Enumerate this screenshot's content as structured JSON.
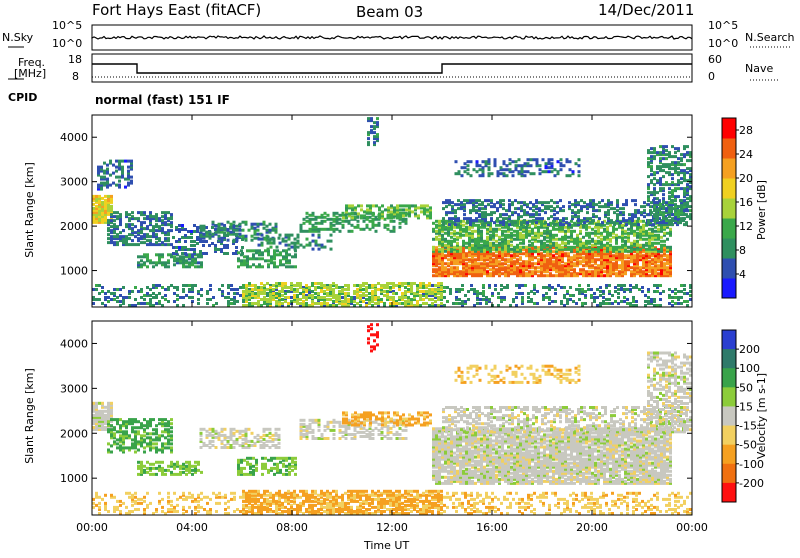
{
  "header": {
    "radar": "Fort Hays East (fitACF)",
    "beam": "Beam 03",
    "date": "14/Dec/2011"
  },
  "noise_panel": {
    "left_label": "N.Sky",
    "right_label": "N.Search",
    "left_ticks": [
      "10^5",
      "10^0"
    ],
    "right_ticks": [
      "10^5",
      "10^0"
    ]
  },
  "freq_panel": {
    "left_label_1": "Freq.",
    "left_label_2": "[MHz]",
    "right_label": "Nave",
    "left_ticks": [
      "18",
      "8"
    ],
    "right_ticks": [
      "60",
      "0"
    ]
  },
  "cpid": {
    "label": "CPID",
    "mode": "normal (fast) 151 IF"
  },
  "colors": {
    "power_scale": [
      "#1a1aff",
      "#2f4fb0",
      "#2f8f5f",
      "#3aa84a",
      "#a8d23a",
      "#f0d020",
      "#f5a020",
      "#f06010",
      "#ff0000"
    ],
    "velocity_scale": [
      "#2a3fd0",
      "#2f7a6a",
      "#39a34a",
      "#8ccc3a",
      "#c8c8c0",
      "#f2d060",
      "#f5a020",
      "#f07010",
      "#ff1010"
    ]
  },
  "chart_data": [
    {
      "type": "heatmap",
      "name": "power",
      "ylabel": "Slant Range [km]",
      "yticks": [
        1000,
        2000,
        3000,
        4000
      ],
      "ylim": [
        180,
        4500
      ],
      "colorbar_label": "Power [dB]",
      "colorbar_ticks": [
        "4",
        "8",
        "12",
        "16",
        "20",
        "24",
        "28"
      ],
      "colorbar_range": [
        0,
        30
      ],
      "regions": [
        {
          "t0": 0.0,
          "t1": 0.8,
          "r0": 2050,
          "r1": 2650,
          "db": 18,
          "density": 0.9
        },
        {
          "t0": 0.2,
          "t1": 1.6,
          "r0": 2800,
          "r1": 3450,
          "db": 6,
          "density": 0.45
        },
        {
          "t0": 0.6,
          "t1": 3.2,
          "r0": 1550,
          "r1": 2300,
          "db": 7,
          "density": 0.55
        },
        {
          "t0": 1.8,
          "t1": 4.4,
          "r0": 1050,
          "r1": 1350,
          "db": 9,
          "density": 0.6
        },
        {
          "t0": 3.2,
          "t1": 6.0,
          "r0": 1350,
          "r1": 2000,
          "db": 6,
          "density": 0.35
        },
        {
          "t0": 4.3,
          "t1": 7.5,
          "r0": 1650,
          "r1": 2100,
          "db": 8,
          "density": 0.45
        },
        {
          "t0": 5.8,
          "t1": 8.2,
          "r0": 1050,
          "r1": 1450,
          "db": 10,
          "density": 0.55
        },
        {
          "t0": 6.5,
          "t1": 9.5,
          "r0": 1450,
          "r1": 1800,
          "db": 8,
          "density": 0.35
        },
        {
          "t0": 8.3,
          "t1": 12.5,
          "r0": 1850,
          "r1": 2300,
          "db": 10,
          "density": 0.4
        },
        {
          "t0": 10.0,
          "t1": 13.5,
          "r0": 2150,
          "r1": 2450,
          "db": 12,
          "density": 0.5
        },
        {
          "t0": 11.0,
          "t1": 11.4,
          "r0": 3800,
          "r1": 4400,
          "db": 8,
          "density": 0.5
        },
        {
          "t0": 13.6,
          "t1": 23.2,
          "r0": 850,
          "r1": 1500,
          "db": 24,
          "density": 0.85
        },
        {
          "t0": 13.6,
          "t1": 23.2,
          "r0": 1400,
          "r1": 2100,
          "db": 12,
          "density": 0.65
        },
        {
          "t0": 14.0,
          "t1": 23.8,
          "r0": 2000,
          "r1": 2550,
          "db": 7,
          "density": 0.45
        },
        {
          "t0": 14.5,
          "t1": 19.5,
          "r0": 3100,
          "r1": 3500,
          "db": 6,
          "density": 0.35
        },
        {
          "t0": 22.2,
          "t1": 24.0,
          "r0": 2000,
          "r1": 3800,
          "db": 8,
          "density": 0.5
        },
        {
          "t0": 0.0,
          "t1": 24.0,
          "r0": 180,
          "r1": 650,
          "db": 8,
          "density": 0.3
        },
        {
          "t0": 6.0,
          "t1": 14.0,
          "r0": 180,
          "r1": 700,
          "db": 15,
          "density": 0.55
        }
      ]
    },
    {
      "type": "heatmap",
      "name": "velocity",
      "xlabel": "Time UT",
      "xticks": [
        "00:00",
        "04:00",
        "08:00",
        "12:00",
        "16:00",
        "20:00",
        "00:00"
      ],
      "xlim": [
        0,
        24
      ],
      "ylabel": "Slant Range [km]",
      "yticks": [
        1000,
        2000,
        3000,
        4000
      ],
      "ylim": [
        180,
        4500
      ],
      "colorbar_label": "Velocity [m s-1]",
      "colorbar_ticks": [
        "200",
        "100",
        "50",
        "15",
        "-15",
        "-50",
        "-100",
        "-200"
      ],
      "colorbar_range": [
        -250,
        250
      ],
      "regions": [
        {
          "t0": 0.0,
          "t1": 0.8,
          "r0": 2050,
          "r1": 2650,
          "v": 0,
          "density": 0.9
        },
        {
          "t0": 0.6,
          "t1": 3.2,
          "r0": 1550,
          "r1": 2300,
          "v": 60,
          "density": 0.5
        },
        {
          "t0": 1.8,
          "t1": 4.4,
          "r0": 1050,
          "r1": 1350,
          "v": 40,
          "density": 0.5
        },
        {
          "t0": 4.3,
          "t1": 7.5,
          "r0": 1650,
          "r1": 2100,
          "v": 0,
          "density": 0.5
        },
        {
          "t0": 5.8,
          "t1": 8.2,
          "r0": 1050,
          "r1": 1450,
          "v": 45,
          "density": 0.5
        },
        {
          "t0": 8.3,
          "t1": 12.5,
          "r0": 1850,
          "r1": 2300,
          "v": 0,
          "density": 0.45
        },
        {
          "t0": 10.0,
          "t1": 13.5,
          "r0": 2150,
          "r1": 2450,
          "v": -60,
          "density": 0.5
        },
        {
          "t0": 11.0,
          "t1": 11.4,
          "r0": 3800,
          "r1": 4400,
          "v": -220,
          "density": 0.5
        },
        {
          "t0": 13.6,
          "t1": 23.2,
          "r0": 850,
          "r1": 2100,
          "v": 0,
          "density": 0.85
        },
        {
          "t0": 14.0,
          "t1": 23.8,
          "r0": 2000,
          "r1": 2550,
          "v": 0,
          "density": 0.5
        },
        {
          "t0": 14.5,
          "t1": 19.5,
          "r0": 3100,
          "r1": 3500,
          "v": -40,
          "density": 0.3
        },
        {
          "t0": 22.2,
          "t1": 24.0,
          "r0": 2000,
          "r1": 3800,
          "v": 0,
          "density": 0.5
        },
        {
          "t0": 0.0,
          "t1": 24.0,
          "r0": 180,
          "r1": 650,
          "v": -40,
          "density": 0.3
        },
        {
          "t0": 6.0,
          "t1": 14.0,
          "r0": 180,
          "r1": 700,
          "v": -60,
          "density": 0.6
        }
      ]
    }
  ]
}
